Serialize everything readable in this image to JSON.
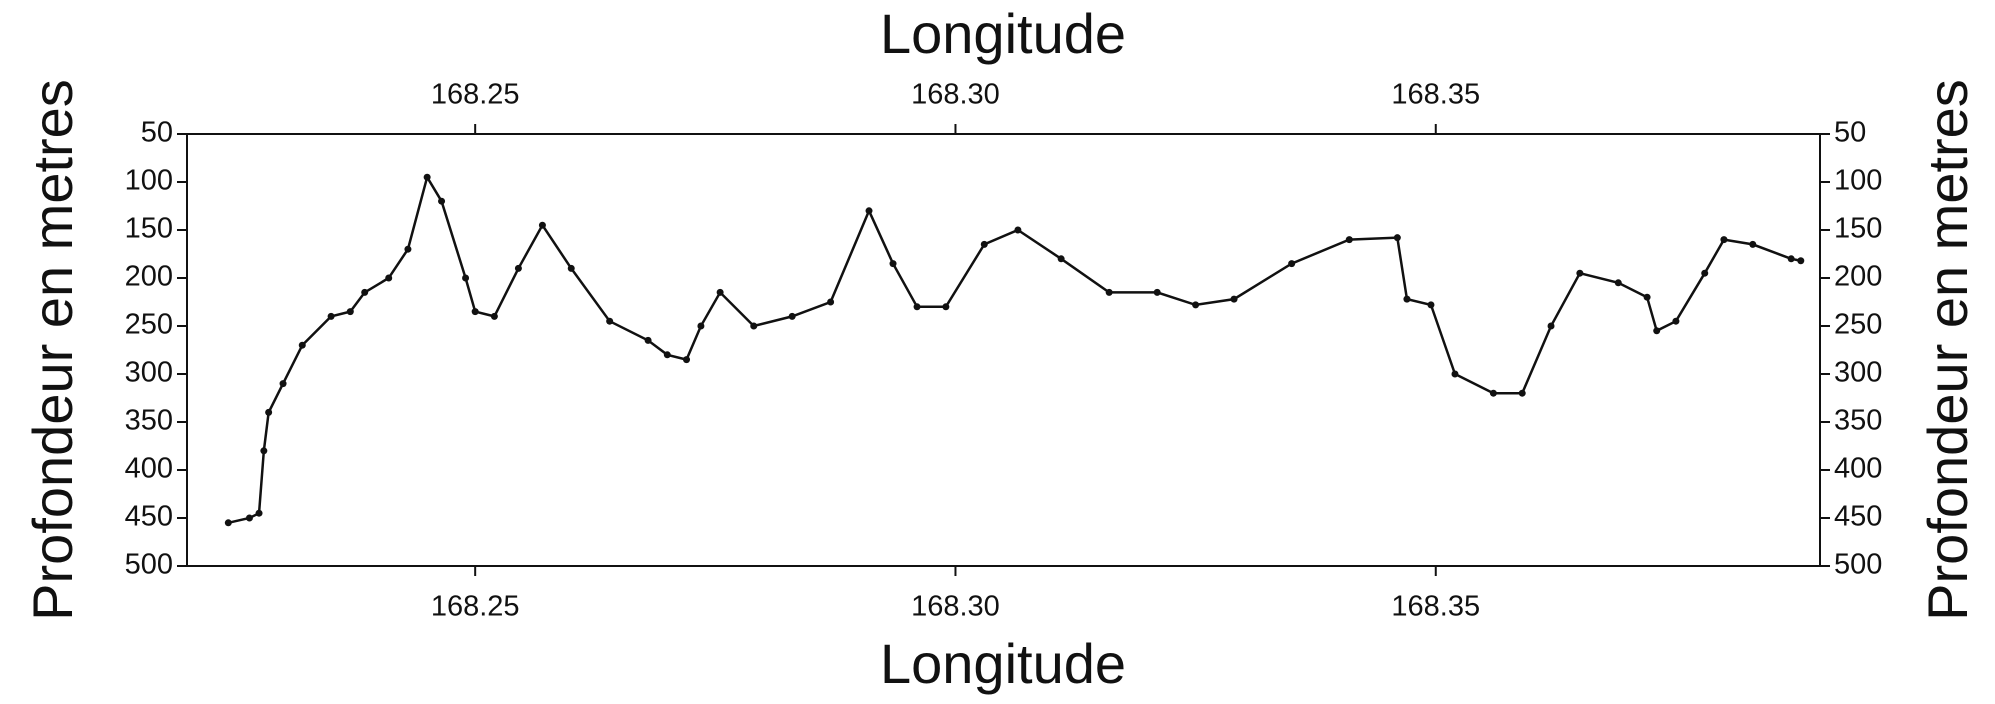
{
  "chart_data": {
    "type": "line",
    "xlabel_top": "Longitude",
    "xlabel": "Longitude",
    "ylabel": "Profondeur en metres",
    "y2label": "Profondeur en metres",
    "xlim": [
      168.22,
      168.39
    ],
    "xticks": [
      168.25,
      {
        "value": 168.3,
        "label": "168.30"
      },
      168.35
    ],
    "ylim": [
      500,
      50
    ],
    "yticks": [
      50,
      100,
      150,
      200,
      250,
      300,
      350,
      400,
      450,
      500
    ],
    "color": "#111111",
    "x": [
      168.2243,
      168.2265,
      168.2275,
      168.228,
      168.2285,
      168.23,
      168.232,
      168.235,
      168.237,
      168.2385,
      168.241,
      168.243,
      168.245,
      168.2465,
      168.249,
      168.25,
      168.252,
      168.2545,
      168.257,
      168.26,
      168.264,
      168.268,
      168.27,
      168.272,
      168.2735,
      168.2755,
      168.279,
      168.283,
      168.287,
      168.291,
      168.2935,
      168.296,
      168.299,
      168.303,
      168.3065,
      168.311,
      168.316,
      168.321,
      168.325,
      168.329,
      168.335,
      168.341,
      168.346,
      168.347,
      168.3495,
      168.352,
      168.356,
      168.359,
      168.362,
      168.365,
      168.369,
      168.372,
      168.373,
      168.375,
      168.378,
      168.38,
      168.383,
      168.387,
      168.388
    ],
    "values": [
      455,
      450,
      445,
      380,
      340,
      310,
      270,
      240,
      235,
      215,
      200,
      170,
      95,
      120,
      200,
      235,
      240,
      190,
      145,
      190,
      245,
      265,
      280,
      285,
      250,
      215,
      250,
      240,
      225,
      130,
      185,
      230,
      230,
      165,
      150,
      180,
      215,
      215,
      228,
      222,
      185,
      160,
      158,
      222,
      228,
      300,
      320,
      320,
      250,
      195,
      205,
      220,
      255,
      245,
      195,
      160,
      165,
      180,
      182
    ]
  }
}
